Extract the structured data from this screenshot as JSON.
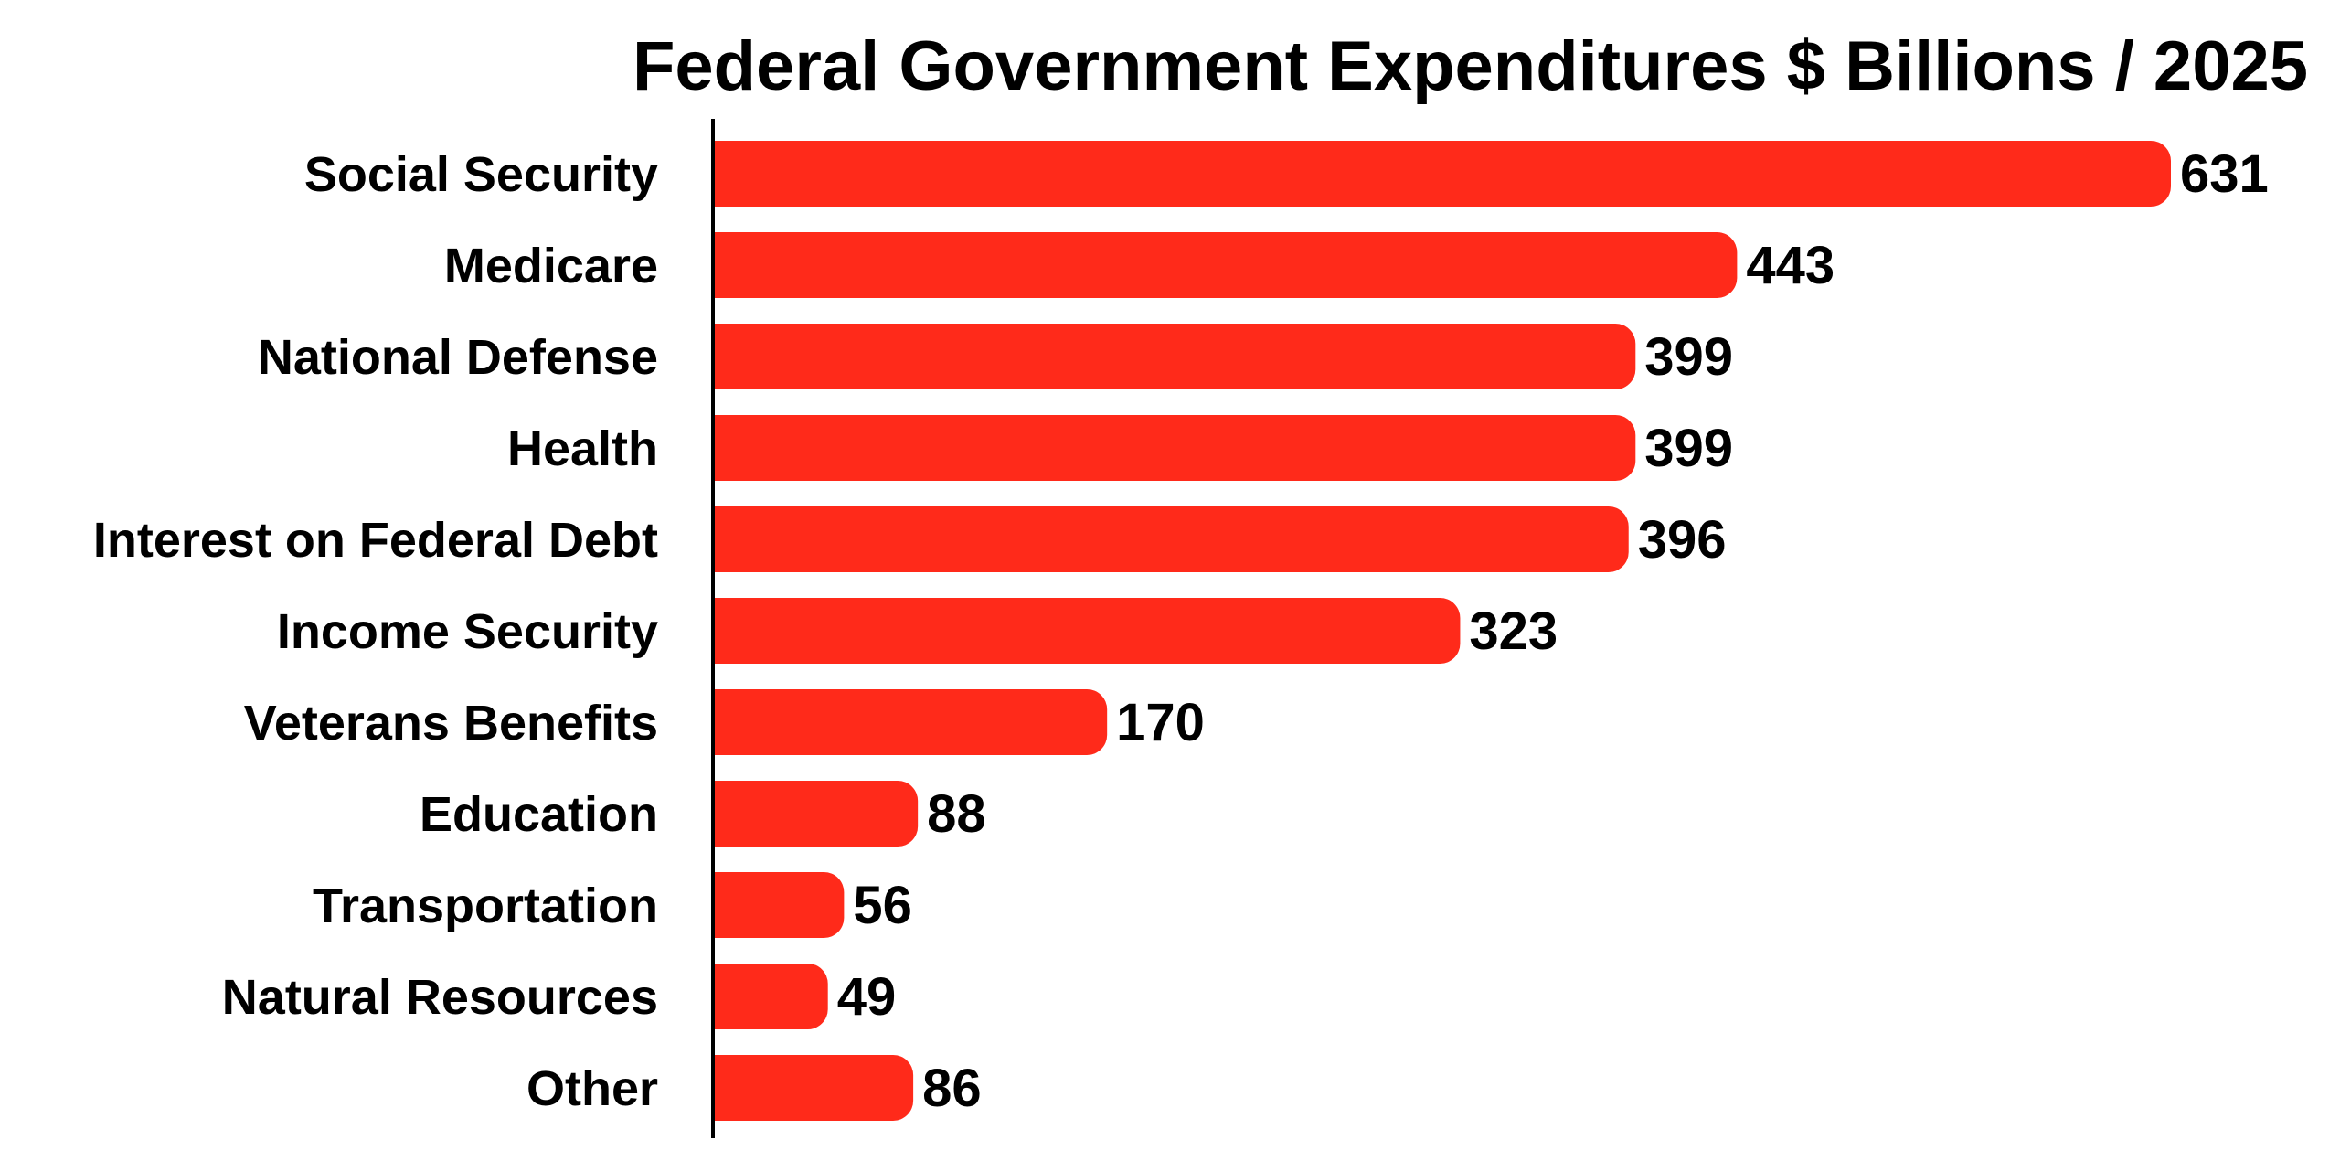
{
  "chart_data": {
    "type": "bar",
    "orientation": "horizontal",
    "title": "Federal Government Expenditures $ Billions / 2025",
    "xlabel": "",
    "ylabel": "",
    "categories": [
      "Social Security",
      "Medicare",
      "National Defense",
      "Health",
      "Interest on Federal Debt",
      "Income Security",
      "Veterans Benefits",
      "Education",
      "Transportation",
      "Natural Resources",
      "Other"
    ],
    "values": [
      631,
      443,
      399,
      399,
      396,
      323,
      170,
      88,
      56,
      49,
      86
    ],
    "data_labels": [
      "631",
      "443",
      "399",
      "399",
      "396",
      "323",
      "170",
      "88",
      "56",
      "49",
      "86"
    ],
    "xlim": [
      0,
      631
    ],
    "grid": false,
    "legend": "none",
    "bar_color": "#ff2a1a",
    "axis_color": "#000000"
  }
}
